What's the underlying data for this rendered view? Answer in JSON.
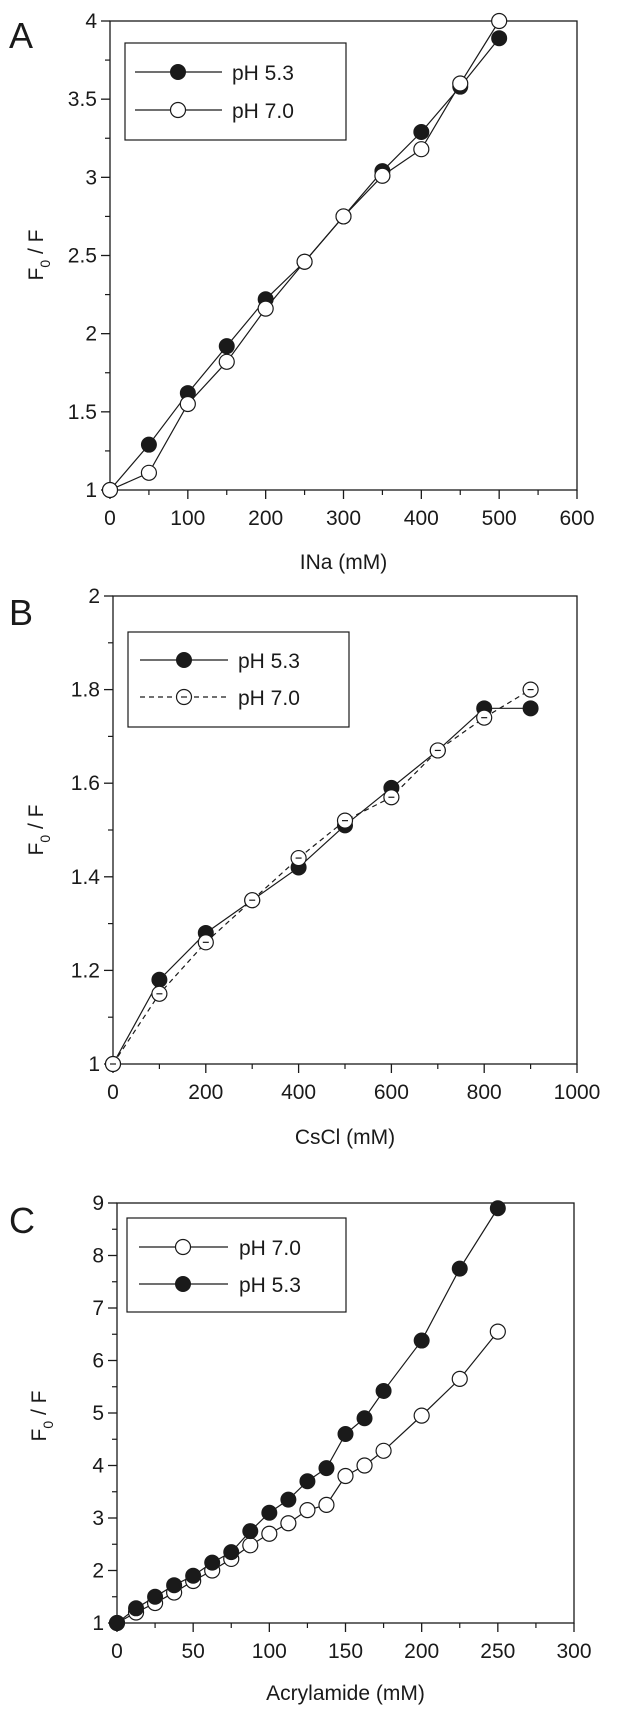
{
  "chart_data": [
    {
      "type": "line",
      "panel_label": "A",
      "xlabel": "INa (mM)",
      "ylabel": {
        "main": "F",
        "subscript": "0",
        "rest": " / F"
      },
      "xlim": [
        0,
        600
      ],
      "ylim": [
        1,
        4
      ],
      "xticks": [
        "0",
        "100",
        "200",
        "300",
        "400",
        "500",
        "600"
      ],
      "yticks": [
        "1",
        "1.5",
        "2",
        "2.5",
        "3",
        "3.5",
        "4"
      ],
      "xtick_values": [
        0,
        100,
        200,
        300,
        400,
        500,
        600
      ],
      "ytick_values": [
        1,
        1.5,
        2,
        2.5,
        3,
        3.5,
        4
      ],
      "legend_position": "top-left",
      "series": [
        {
          "name": "pH 5.3",
          "marker": "filled",
          "line": "solid",
          "x": [
            0,
            50,
            100,
            150,
            200,
            250,
            300,
            350,
            400,
            450,
            500
          ],
          "y": [
            1.0,
            1.29,
            1.62,
            1.92,
            2.22,
            2.46,
            2.75,
            3.04,
            3.29,
            3.58,
            3.89
          ]
        },
        {
          "name": "pH 7.0",
          "marker": "open",
          "line": "solid",
          "x": [
            0,
            50,
            100,
            150,
            200,
            250,
            300,
            350,
            400,
            450,
            500
          ],
          "y": [
            1.0,
            1.11,
            1.55,
            1.82,
            2.16,
            2.46,
            2.75,
            3.01,
            3.18,
            3.6,
            4.0
          ]
        }
      ]
    },
    {
      "type": "line",
      "panel_label": "B",
      "xlabel": "CsCl (mM)",
      "ylabel": {
        "main": "F",
        "subscript": "0",
        "rest": " / F"
      },
      "xlim": [
        0,
        1000
      ],
      "ylim": [
        1,
        2
      ],
      "xticks": [
        "0",
        "200",
        "400",
        "600",
        "800",
        "1000"
      ],
      "yticks": [
        "1",
        "1.2",
        "1.4",
        "1.6",
        "1.8",
        "2"
      ],
      "xtick_values": [
        0,
        200,
        400,
        600,
        800,
        1000
      ],
      "ytick_values": [
        1,
        1.2,
        1.4,
        1.6,
        1.8,
        2
      ],
      "legend_position": "top-left",
      "series": [
        {
          "name": "pH 5.3",
          "marker": "filled",
          "line": "solid",
          "x": [
            0,
            100,
            200,
            300,
            400,
            500,
            600,
            700,
            800,
            900
          ],
          "y": [
            1.0,
            1.18,
            1.28,
            1.35,
            1.42,
            1.51,
            1.59,
            1.67,
            1.76,
            1.76
          ]
        },
        {
          "name": "pH 7.0",
          "marker": "open-dot",
          "line": "dashed",
          "x": [
            0,
            100,
            200,
            300,
            400,
            500,
            600,
            700,
            800,
            900
          ],
          "y": [
            1.0,
            1.15,
            1.26,
            1.35,
            1.44,
            1.52,
            1.57,
            1.67,
            1.74,
            1.8
          ]
        }
      ]
    },
    {
      "type": "line",
      "panel_label": "C",
      "xlabel": "Acrylamide (mM)",
      "ylabel": {
        "main": "F",
        "subscript": "0",
        "rest": " / F"
      },
      "xlim": [
        0,
        300
      ],
      "ylim": [
        1,
        9
      ],
      "xticks": [
        "0",
        "50",
        "100",
        "150",
        "200",
        "250",
        "300"
      ],
      "yticks": [
        "1",
        "2",
        "3",
        "4",
        "5",
        "6",
        "7",
        "8",
        "9"
      ],
      "xtick_values": [
        0,
        50,
        100,
        150,
        200,
        250,
        300
      ],
      "ytick_values": [
        1,
        2,
        3,
        4,
        5,
        6,
        7,
        8,
        9
      ],
      "legend_position": "top-left",
      "series": [
        {
          "name": "pH 7.0",
          "marker": "open",
          "line": "solid",
          "x": [
            0,
            12.5,
            25,
            37.5,
            50,
            62.5,
            75,
            87.5,
            100,
            112.5,
            125,
            137.5,
            150,
            162.5,
            175,
            200,
            225,
            250
          ],
          "y": [
            1.0,
            1.2,
            1.38,
            1.58,
            1.8,
            2.0,
            2.22,
            2.48,
            2.7,
            2.9,
            3.15,
            3.25,
            3.8,
            4.0,
            4.28,
            4.95,
            5.65,
            6.55
          ]
        },
        {
          "name": "pH 5.3",
          "marker": "filled",
          "line": "solid",
          "x": [
            0,
            12.5,
            25,
            37.5,
            50,
            62.5,
            75,
            87.5,
            100,
            112.5,
            125,
            137.5,
            150,
            162.5,
            175,
            200,
            225,
            250
          ],
          "y": [
            1.0,
            1.28,
            1.5,
            1.72,
            1.9,
            2.15,
            2.35,
            2.75,
            3.1,
            3.35,
            3.7,
            3.95,
            4.6,
            4.9,
            5.42,
            6.38,
            7.75,
            8.9
          ]
        }
      ]
    }
  ]
}
